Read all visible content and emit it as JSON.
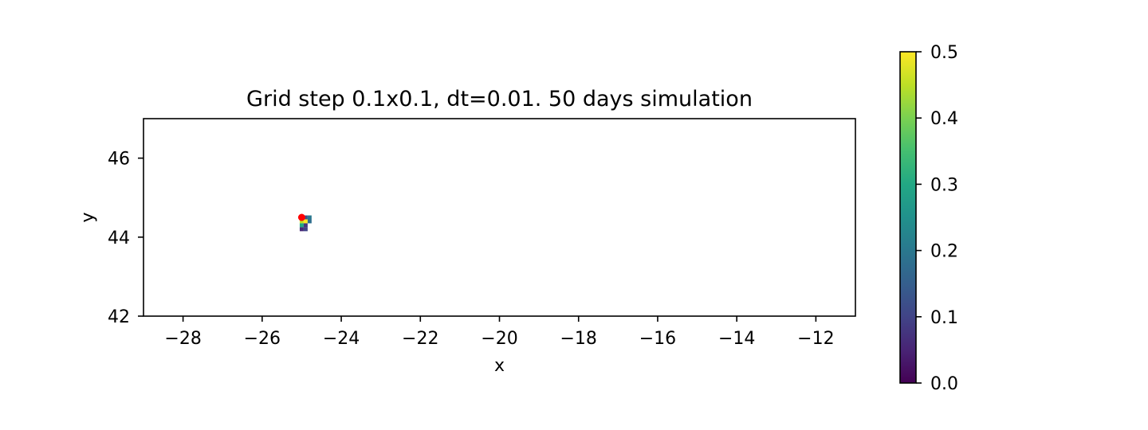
{
  "chart_data": {
    "type": "heatmap",
    "title": "Grid step 0.1x0.1, dt=0.01. 50 days simulation",
    "xlabel": "x",
    "ylabel": "y",
    "xlim": [
      -29,
      -11
    ],
    "ylim": [
      42,
      47
    ],
    "xticks": [
      -28,
      -26,
      -24,
      -22,
      -20,
      -18,
      -16,
      -14,
      -12
    ],
    "xtick_labels": [
      "−28",
      "−26",
      "−24",
      "−22",
      "−20",
      "−18",
      "−16",
      "−14",
      "−12"
    ],
    "yticks": [
      42,
      44,
      46
    ],
    "ytick_labels": [
      "42",
      "44",
      "46"
    ],
    "grid": false,
    "colormap": "viridis",
    "colorbar": {
      "range": [
        0,
        0.5
      ],
      "ticks": [
        0,
        0.1,
        0.2,
        0.3,
        0.4,
        0.5
      ],
      "tick_labels": [
        "0.0",
        "0.1",
        "0.2",
        "0.3",
        "0.4",
        "0.5"
      ]
    },
    "grid_step": [
      0.1,
      0.1
    ],
    "cells": [
      {
        "x": -25.0,
        "y": 44.5,
        "value": 0.5
      },
      {
        "x": -24.9,
        "y": 44.5,
        "value": 0.12
      },
      {
        "x": -24.8,
        "y": 44.5,
        "value": 0.2
      },
      {
        "x": -25.0,
        "y": 44.4,
        "value": 0.45
      },
      {
        "x": -24.9,
        "y": 44.4,
        "value": 0.5
      },
      {
        "x": -24.8,
        "y": 44.4,
        "value": 0.18
      },
      {
        "x": -25.0,
        "y": 44.3,
        "value": 0.3
      },
      {
        "x": -24.9,
        "y": 44.3,
        "value": 0.08
      },
      {
        "x": -25.0,
        "y": 44.2,
        "value": 0.06
      },
      {
        "x": -24.9,
        "y": 44.2,
        "value": 0.1
      }
    ],
    "marker": {
      "x": -25.0,
      "y": 44.5,
      "color": "#ff0000"
    }
  }
}
